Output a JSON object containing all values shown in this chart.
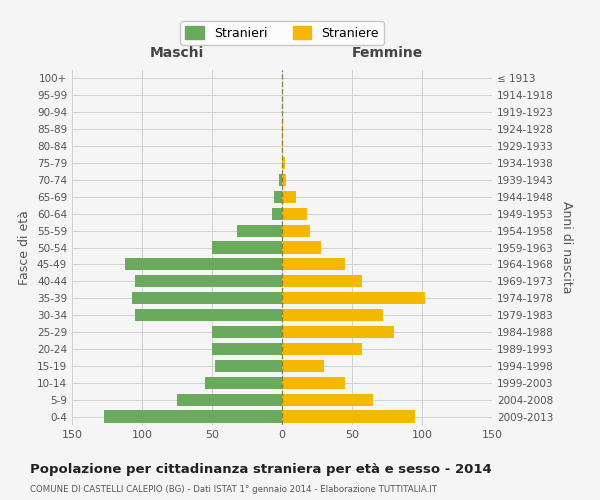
{
  "age_groups": [
    "100+",
    "95-99",
    "90-94",
    "85-89",
    "80-84",
    "75-79",
    "70-74",
    "65-69",
    "60-64",
    "55-59",
    "50-54",
    "45-49",
    "40-44",
    "35-39",
    "30-34",
    "25-29",
    "20-24",
    "15-19",
    "10-14",
    "5-9",
    "0-4"
  ],
  "birth_years": [
    "≤ 1913",
    "1914-1918",
    "1919-1923",
    "1924-1928",
    "1929-1933",
    "1934-1938",
    "1939-1943",
    "1944-1948",
    "1949-1953",
    "1954-1958",
    "1959-1963",
    "1964-1968",
    "1969-1973",
    "1974-1978",
    "1979-1983",
    "1984-1988",
    "1989-1993",
    "1994-1998",
    "1999-2003",
    "2004-2008",
    "2009-2013"
  ],
  "maschi": [
    0,
    0,
    0,
    0,
    0,
    0,
    2,
    6,
    7,
    32,
    50,
    112,
    105,
    107,
    105,
    50,
    50,
    48,
    55,
    75,
    127
  ],
  "femmine": [
    0,
    0,
    0,
    1,
    1,
    2,
    3,
    10,
    18,
    20,
    28,
    45,
    57,
    102,
    72,
    80,
    57,
    30,
    45,
    65,
    95
  ],
  "male_color": "#6aaa5e",
  "female_color": "#f5b800",
  "dashed_color": "#7a7a4a",
  "bg_color": "#f5f5f5",
  "grid_color": "#d0d0d0",
  "title": "Popolazione per cittadinanza straniera per età e sesso - 2014",
  "subtitle": "COMUNE DI CASTELLI CALEPIO (BG) - Dati ISTAT 1° gennaio 2014 - Elaborazione TUTTITALIA.IT",
  "header_left": "Maschi",
  "header_right": "Femmine",
  "ylabel_left": "Fasce di età",
  "ylabel_right": "Anni di nascita",
  "legend_male": "Stranieri",
  "legend_female": "Straniere",
  "xlim": 150
}
